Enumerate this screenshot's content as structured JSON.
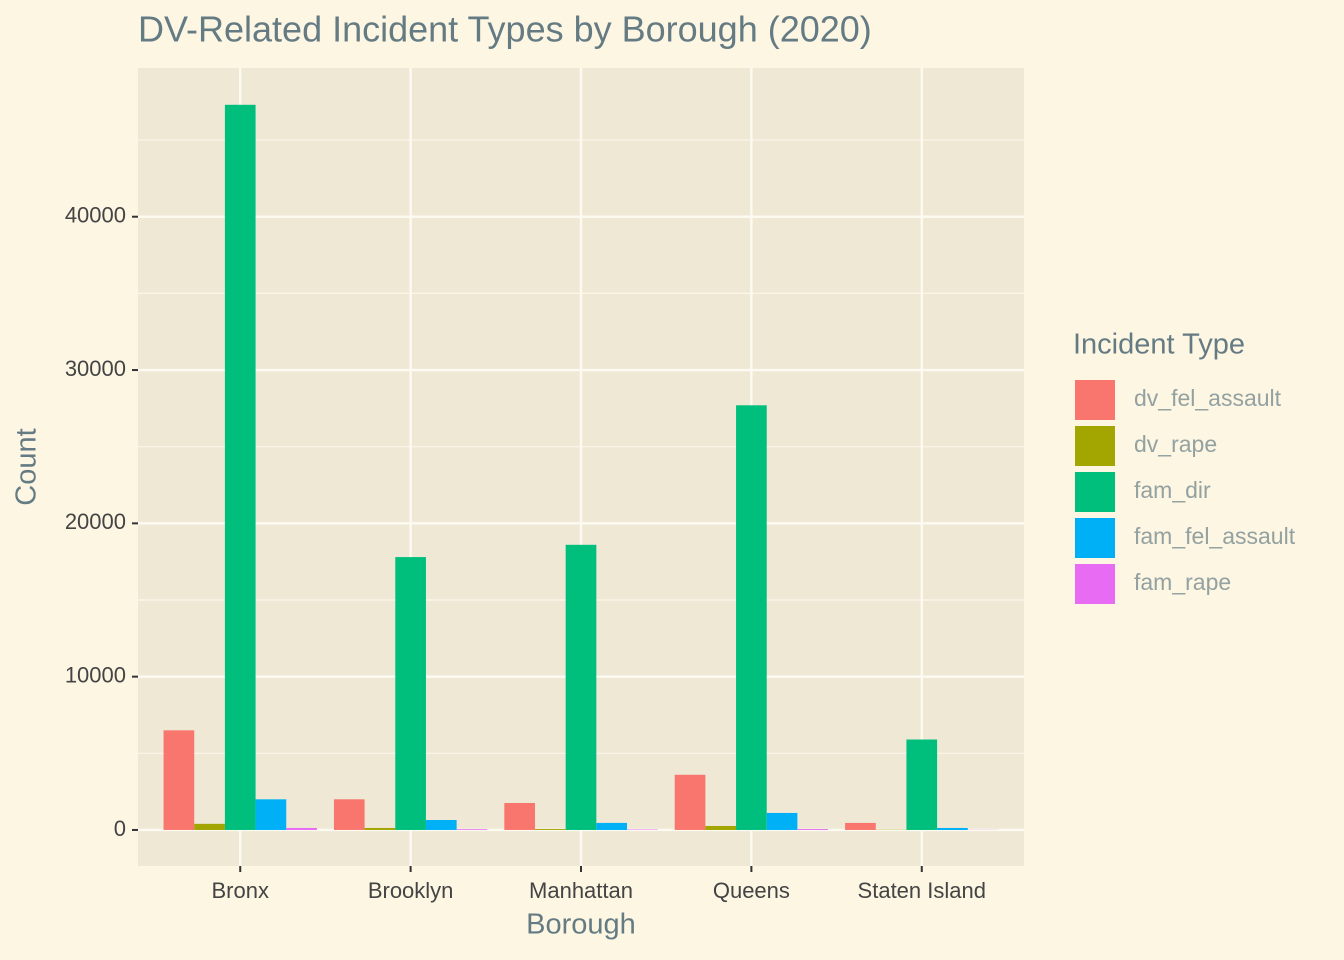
{
  "chart_data": {
    "type": "bar",
    "title": "DV-Related Incident Types by Borough (2020)",
    "x_label": "Borough",
    "y_label": "Count",
    "legend_title": "Incident Type",
    "categories": [
      "Bronx",
      "Brooklyn",
      "Manhattan",
      "Queens",
      "Staten Island"
    ],
    "series": [
      {
        "name": "dv_fel_assault",
        "color": "#f8766d",
        "values": [
          6500,
          2000,
          1760,
          3600,
          460
        ]
      },
      {
        "name": "dv_rape",
        "color": "#a3a500",
        "values": [
          400,
          130,
          60,
          260,
          20
        ]
      },
      {
        "name": "fam_dir",
        "color": "#00bf7d",
        "values": [
          47300,
          17800,
          18600,
          27700,
          5900
        ]
      },
      {
        "name": "fam_fel_assault",
        "color": "#00b0f6",
        "values": [
          2000,
          650,
          460,
          1110,
          130
        ]
      },
      {
        "name": "fam_rape",
        "color": "#e76bf3",
        "values": [
          130,
          50,
          30,
          60,
          10
        ]
      }
    ],
    "ylim": [
      -2350,
      49700
    ],
    "yticks": [
      0,
      10000,
      20000,
      30000,
      40000
    ],
    "grid": true,
    "legend": "right"
  }
}
